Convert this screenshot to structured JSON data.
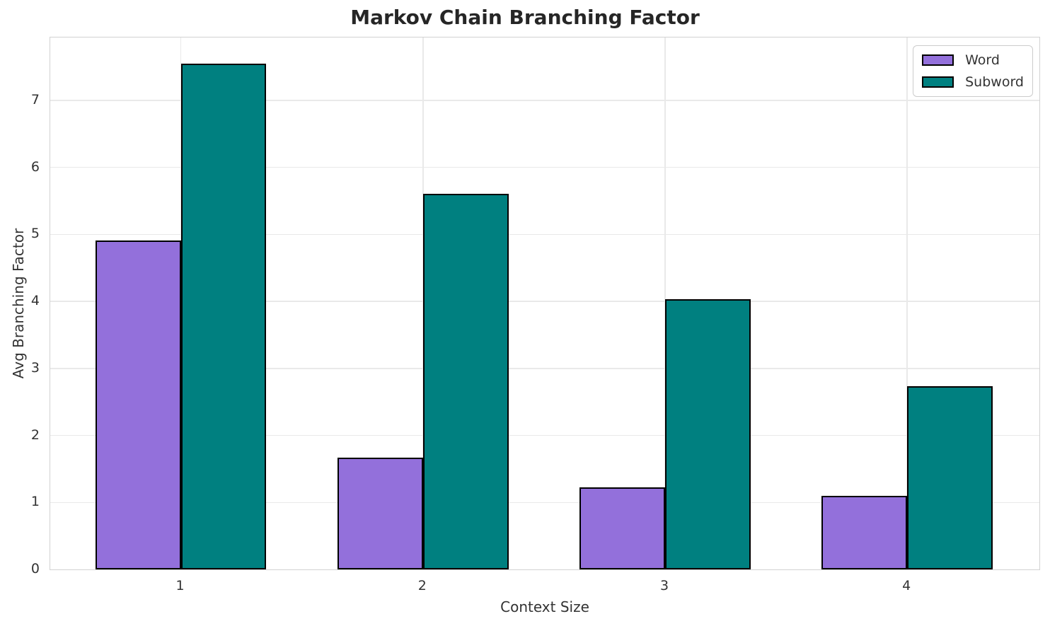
{
  "chart_data": {
    "type": "bar",
    "title": "Markov Chain Branching Factor",
    "xlabel": "Context Size",
    "ylabel": "Avg Branching Factor",
    "categories": [
      "1",
      "2",
      "3",
      "4"
    ],
    "series": [
      {
        "name": "Word",
        "color": "#9370DB",
        "values": [
          4.91,
          1.67,
          1.22,
          1.1
        ]
      },
      {
        "name": "Subword",
        "color": "#008080",
        "values": [
          7.55,
          5.61,
          4.03,
          2.74
        ]
      }
    ],
    "ylim": [
      0,
      7.94
    ],
    "yticks": [
      0,
      1,
      2,
      3,
      4,
      5,
      6,
      7
    ],
    "grid": true,
    "legend_position": "upper right",
    "bar_edge_color": "#000000",
    "colors": {
      "grid": "#e9e9e9",
      "spine": "#d2d2d2",
      "title_text": "#262626",
      "tick_text": "#333333"
    }
  }
}
